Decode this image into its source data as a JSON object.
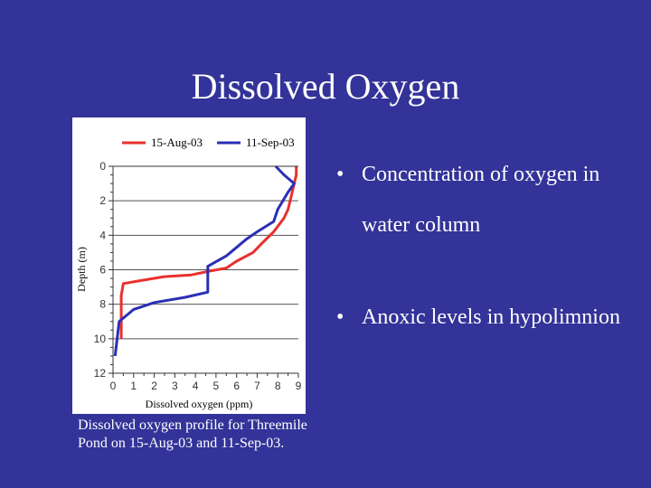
{
  "slide": {
    "title": "Dissolved Oxygen",
    "caption": "Dissolved oxygen profile for Threemile Pond on 15-Aug-03 and 11-Sep-03.",
    "bullets": [
      {
        "symbol": "•",
        "text": "Concentration of oxygen in water column"
      },
      {
        "symbol": "•",
        "text": "Anoxic levels in hypolimnion"
      }
    ],
    "colors": {
      "background": "#333399",
      "text": "#ffffff"
    }
  },
  "chart_data": {
    "type": "line",
    "xlabel": "Dissolved oxygen (ppm)",
    "ylabel": "Depth (m)",
    "xlim": [
      0,
      9
    ],
    "ylim": [
      0,
      12
    ],
    "y_inverted": true,
    "xticks": [
      0,
      1,
      2,
      3,
      4,
      5,
      6,
      7,
      8,
      9
    ],
    "yticks": [
      0,
      2,
      4,
      6,
      8,
      10,
      12
    ],
    "grid": "horizontal",
    "legend": "top",
    "series": [
      {
        "name": "15-Aug-03",
        "color": "#e8312e",
        "points": [
          [
            8.9,
            0
          ],
          [
            8.9,
            0.5
          ],
          [
            8.8,
            1.0
          ],
          [
            8.6,
            2.0
          ],
          [
            8.5,
            2.5
          ],
          [
            8.3,
            3.0
          ],
          [
            7.8,
            3.8
          ],
          [
            7.2,
            4.5
          ],
          [
            6.8,
            5.0
          ],
          [
            6.0,
            5.5
          ],
          [
            5.5,
            5.9
          ],
          [
            4.6,
            6.1
          ],
          [
            3.8,
            6.3
          ],
          [
            2.5,
            6.4
          ],
          [
            1.5,
            6.6
          ],
          [
            0.5,
            6.8
          ],
          [
            0.4,
            7.5
          ],
          [
            0.4,
            10.0
          ]
        ]
      },
      {
        "name": "11-Sep-03",
        "color": "#2a2fb5",
        "points": [
          [
            7.9,
            0
          ],
          [
            8.3,
            0.5
          ],
          [
            8.8,
            1.0
          ],
          [
            8.5,
            1.5
          ],
          [
            8.0,
            2.5
          ],
          [
            7.8,
            3.2
          ],
          [
            7.0,
            3.8
          ],
          [
            6.5,
            4.2
          ],
          [
            6.0,
            4.7
          ],
          [
            5.5,
            5.2
          ],
          [
            4.6,
            5.8
          ],
          [
            4.6,
            7.3
          ],
          [
            3.5,
            7.6
          ],
          [
            2.0,
            7.9
          ],
          [
            1.0,
            8.3
          ],
          [
            0.3,
            9.0
          ],
          [
            0.1,
            11.0
          ]
        ]
      }
    ]
  }
}
